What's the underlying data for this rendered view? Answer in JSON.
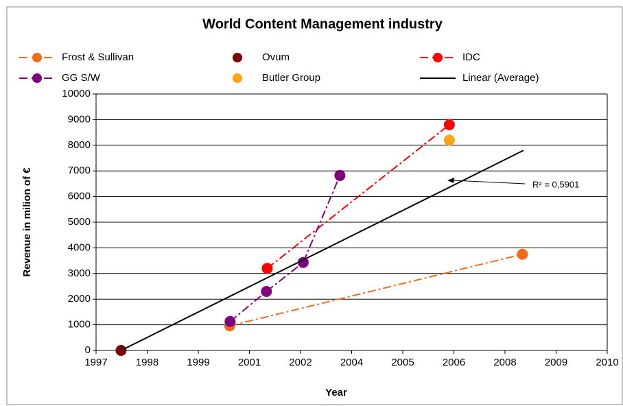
{
  "chart_data": {
    "type": "scatter",
    "title": "World Content Management industry",
    "x_label": "Year",
    "y_label": "Revenue in milion of €",
    "xlim": [
      1996.78,
      2010.28
    ],
    "xticks": [
      {
        "value": 1996.78,
        "label": "1997"
      },
      {
        "value": 1998.13,
        "label": "1998"
      },
      {
        "value": 1999.48,
        "label": "1999"
      },
      {
        "value": 2000.83,
        "label": "2001"
      },
      {
        "value": 2002.18,
        "label": "2002"
      },
      {
        "value": 2003.53,
        "label": "2004"
      },
      {
        "value": 2004.88,
        "label": "2005"
      },
      {
        "value": 2006.23,
        "label": "2006"
      },
      {
        "value": 2007.58,
        "label": "2008"
      },
      {
        "value": 2008.93,
        "label": "2009"
      },
      {
        "value": 2010.28,
        "label": "2010"
      }
    ],
    "ylim": [
      0,
      10000
    ],
    "yticks": [
      0,
      1000,
      2000,
      3000,
      4000,
      5000,
      6000,
      7000,
      8000,
      9000,
      10000
    ],
    "grid": true,
    "series": [
      {
        "name": "Frost & Sullivan",
        "color": "#f26b1d",
        "line": "dash-dot",
        "marker": true,
        "x": [
          2000.31,
          2008.04
        ],
        "values": [
          960,
          3750
        ]
      },
      {
        "name": "Ovum",
        "color": "#7f0000",
        "line": "none",
        "marker": true,
        "x": [
          1997.44
        ],
        "values": [
          0
        ]
      },
      {
        "name": "IDC",
        "color": "#ff0000",
        "line": "dash-dot",
        "marker": true,
        "x": [
          2001.3,
          2006.11
        ],
        "values": [
          3200,
          8800
        ]
      },
      {
        "name": "GG S/W",
        "color": "#800080",
        "line": "dash-dot",
        "marker": true,
        "x": [
          2000.32,
          2001.28,
          2002.25,
          2003.22
        ],
        "values": [
          1130,
          2300,
          3430,
          6820
        ]
      },
      {
        "name": "Butler Group",
        "color": "#ffa214",
        "line": "none",
        "marker": true,
        "x": [
          2006.11
        ],
        "values": [
          8200
        ]
      },
      {
        "name": "Linear (Average)",
        "color": "#000000",
        "line": "solid",
        "marker": false,
        "x": [
          1997.44,
          2008.07
        ],
        "values": [
          0,
          7800
        ]
      }
    ],
    "annotation": "R² = 0,5901"
  }
}
